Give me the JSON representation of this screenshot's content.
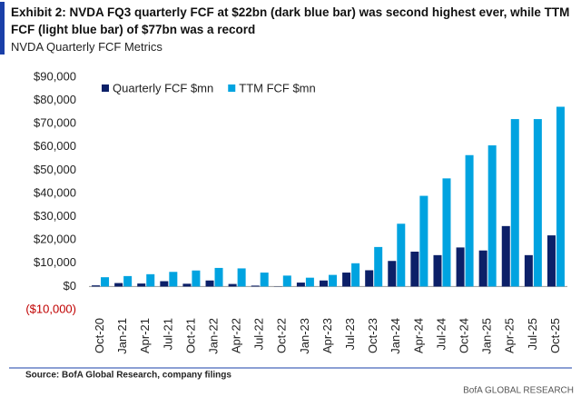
{
  "chart_data": {
    "type": "bar",
    "title": "Exhibit 2: NVDA FQ3 quarterly FCF at $22bn (dark blue bar) was second highest ever, while TTM FCF (light blue bar) of $77bn was a record",
    "subtitle": "NVDA Quarterly FCF Metrics",
    "source": "Source: BofA Global Research, company filings",
    "brand": "BofA GLOBAL RESEARCH",
    "categories": [
      "Oct-20",
      "Jan-21",
      "Apr-21",
      "Jul-21",
      "Oct-21",
      "Jan-22",
      "Apr-22",
      "Jul-22",
      "Oct-22",
      "Jan-23",
      "Apr-23",
      "Jul-23",
      "Oct-23",
      "Jan-24",
      "Apr-24",
      "Jul-24",
      "Oct-24",
      "Jan-25",
      "Apr-25",
      "Jul-25",
      "Oct-25"
    ],
    "series": [
      {
        "name": "Quarterly FCF $mn",
        "color": "#0c2068",
        "values": [
          500,
          1500,
          1300,
          2300,
          1200,
          2600,
          1100,
          400,
          -100,
          1700,
          2600,
          6000,
          7000,
          11000,
          15000,
          13500,
          16800,
          15500,
          26000,
          13500,
          22000
        ]
      },
      {
        "name": "TTM FCF $mn",
        "color": "#00a3e0",
        "values": [
          4000,
          4500,
          5300,
          6300,
          6900,
          8000,
          7800,
          6000,
          4700,
          3800,
          5000,
          10000,
          17000,
          27000,
          39000,
          46500,
          56500,
          60700,
          72000,
          72000,
          77300
        ]
      }
    ],
    "ylim": [
      -10000,
      90000
    ],
    "yticks": [
      {
        "value": -10000,
        "label": "($10,000)"
      },
      {
        "value": 0,
        "label": "$0"
      },
      {
        "value": 10000,
        "label": "$10,000"
      },
      {
        "value": 20000,
        "label": "$20,000"
      },
      {
        "value": 30000,
        "label": "$30,000"
      },
      {
        "value": 40000,
        "label": "$40,000"
      },
      {
        "value": 50000,
        "label": "$50,000"
      },
      {
        "value": 60000,
        "label": "$60,000"
      },
      {
        "value": 70000,
        "label": "$70,000"
      },
      {
        "value": 80000,
        "label": "$80,000"
      },
      {
        "value": 90000,
        "label": "$90,000"
      }
    ],
    "legend": "top-left"
  }
}
